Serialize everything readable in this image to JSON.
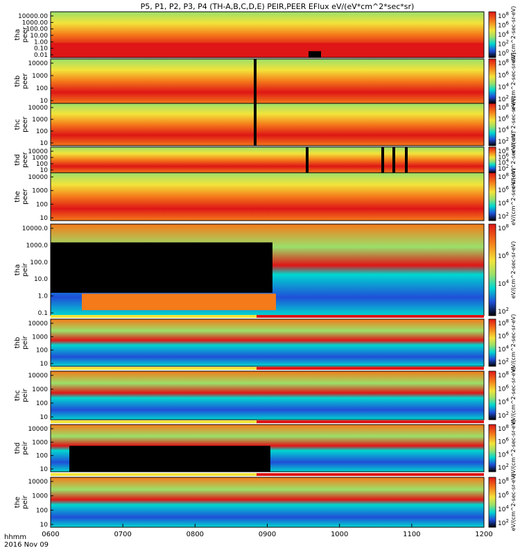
{
  "title": "P5, P1, P2, P3, P4 (TH-A,B,C,D,E) PEIR,PEER EFlux eV/(eV*cm^2*sec*sr)",
  "x_axis": {
    "ticks": [
      "0600",
      "0700",
      "0800",
      "0900",
      "1000",
      "1100",
      "1200"
    ],
    "label_line1": "hhmm",
    "label_line2": "2016 Nov 09"
  },
  "colorbar_label": "[eV/(cm2-s-sr-eV)]",
  "colorbar_label_side": "eV/(cm^2-sec-sr-eV)",
  "colorbar_ticks_a": [
    "10^8",
    "10^6",
    "10^4",
    "10^2"
  ],
  "colorbar_ticks_b": [
    "10^8",
    "10^6",
    "10^4",
    "10^2",
    "10^0"
  ],
  "chart_data": {
    "type": "heatmap",
    "x_range": [
      "0600",
      "1200"
    ],
    "panels": [
      {
        "id": "tha_peer",
        "ylabel": [
          "tha",
          "peer"
        ],
        "yticks": [
          "10000.00",
          "1000.00",
          "100.00",
          "10.00",
          "1.00",
          "0.10",
          "0.01"
        ],
        "colorbar_ticks": [
          "10^8",
          "10^6",
          "10^4",
          "10^2",
          "10^0"
        ]
      },
      {
        "id": "thb_peer",
        "ylabel": [
          "thb",
          "peer"
        ],
        "yticks": [
          "10000",
          "1000",
          "100",
          "10"
        ],
        "colorbar_ticks": [
          "10^8",
          "10^6",
          "10^4",
          "10^2"
        ]
      },
      {
        "id": "thc_peer",
        "ylabel": [
          "thc",
          "peer"
        ],
        "yticks": [
          "10000",
          "1000",
          "100",
          "10"
        ],
        "colorbar_ticks": [
          "10^8",
          "10^6",
          "10^4",
          "10^2"
        ]
      },
      {
        "id": "thd_peer",
        "ylabel": [
          "thd",
          "peer"
        ],
        "yticks": [
          "10000",
          "1000",
          "100",
          "10"
        ],
        "colorbar_ticks": [
          "10^8",
          "10^6",
          "10^4",
          "10^2"
        ]
      },
      {
        "id": "the_peer",
        "ylabel": [
          "the",
          "peer"
        ],
        "yticks": [
          "10000",
          "1000",
          "100",
          "10"
        ],
        "colorbar_ticks": [
          "10^8",
          "10^6",
          "10^4",
          "10^2"
        ]
      },
      {
        "id": "tha_peir",
        "ylabel": [
          "tha",
          "peir"
        ],
        "yticks": [
          "10000.0",
          "1000.0",
          "100.0",
          "10.0",
          "1.0",
          "0.1"
        ],
        "colorbar_ticks": [
          "10^8",
          "10^6",
          "10^4",
          "10^2"
        ]
      },
      {
        "id": "thb_peir",
        "ylabel": [
          "thb",
          "peir"
        ],
        "yticks": [
          "10000",
          "1000",
          "100",
          "10"
        ],
        "colorbar_ticks": [
          "10^8",
          "10^6",
          "10^4",
          "10^2"
        ]
      },
      {
        "id": "thc_peir",
        "ylabel": [
          "thc",
          "peir"
        ],
        "yticks": [
          "10000",
          "1000",
          "100",
          "10"
        ],
        "colorbar_ticks": [
          "10^8",
          "10^6",
          "10^4",
          "10^2"
        ]
      },
      {
        "id": "thd_peir",
        "ylabel": [
          "thd",
          "peir"
        ],
        "yticks": [
          "10000",
          "1000",
          "100",
          "10"
        ],
        "colorbar_ticks": [
          "10^8",
          "10^6",
          "10^4",
          "10^2"
        ]
      },
      {
        "id": "the_peir",
        "ylabel": [
          "the",
          "peir"
        ],
        "yticks": [
          "10000",
          "1000",
          "100",
          "10"
        ],
        "colorbar_ticks": [
          "10^8",
          "10^6",
          "10^4",
          "10^2"
        ]
      }
    ],
    "colors": {
      "black": "#000000",
      "blue": "#1f4fd8",
      "cyan": "#00d7d0",
      "green": "#9be06a",
      "yellow": "#f3e33a",
      "orange": "#f47a1a",
      "red": "#de1616",
      "white": "#ffffff"
    }
  }
}
